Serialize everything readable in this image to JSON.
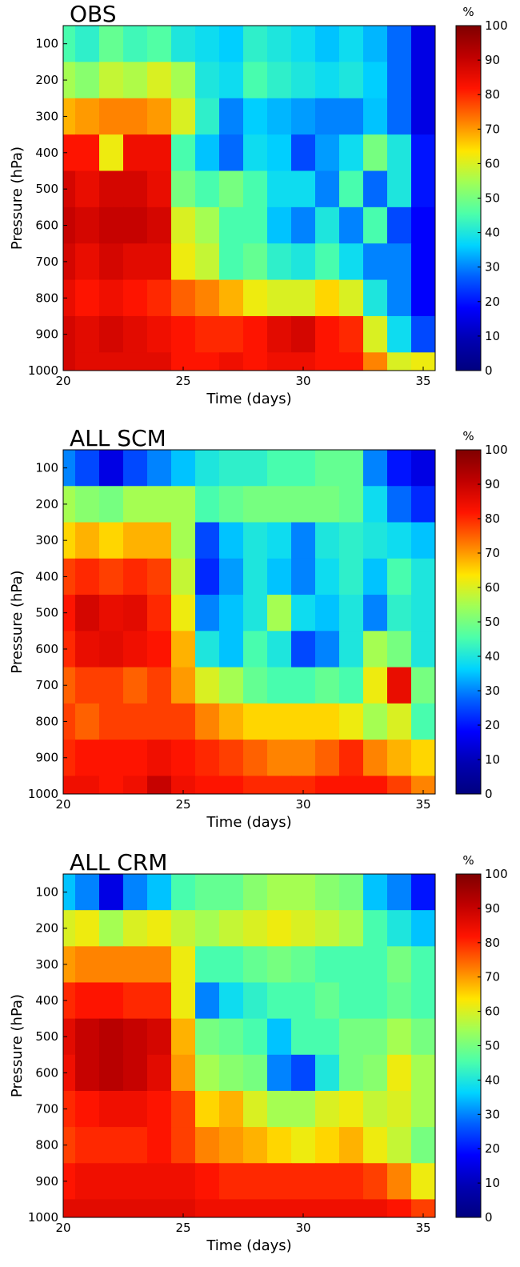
{
  "colormap": [
    "#00007f",
    "#0000b2",
    "#0000ff",
    "#0060ff",
    "#00d4ff",
    "#4cffaa",
    "#a0ff56",
    "#ffe600",
    "#ff7a00",
    "#ff1400",
    "#c00000",
    "#7f0000"
  ],
  "chart_data": [
    {
      "type": "heatmap",
      "title": "OBS",
      "xlabel": "Time (days)",
      "ylabel": "Pressure (hPa)",
      "xlim": [
        20,
        35.5
      ],
      "ylim": [
        1000,
        50
      ],
      "y_inverted": true,
      "x_ticks": [
        "20",
        "25",
        "30",
        "35"
      ],
      "y_ticks": [
        "100",
        "200",
        "300",
        "400",
        "500",
        "600",
        "700",
        "800",
        "900",
        "1000"
      ],
      "colorbar": {
        "label": "%",
        "ticks": [
          "0",
          "10",
          "20",
          "30",
          "40",
          "50",
          "60",
          "70",
          "80",
          "90",
          "100"
        ],
        "range": [
          0,
          100
        ]
      },
      "x": [
        20,
        21,
        22,
        23,
        24,
        25,
        26,
        27,
        28,
        29,
        30,
        31,
        32,
        33,
        34,
        35
      ],
      "y": [
        100,
        200,
        300,
        400,
        500,
        600,
        700,
        800,
        900,
        1000
      ],
      "z": [
        [
          45,
          42,
          48,
          44,
          46,
          40,
          38,
          36,
          42,
          40,
          38,
          35,
          38,
          34,
          28,
          15
        ],
        [
          55,
          52,
          58,
          56,
          60,
          55,
          40,
          38,
          45,
          42,
          40,
          38,
          40,
          36,
          28,
          15
        ],
        [
          68,
          70,
          72,
          72,
          70,
          60,
          42,
          30,
          36,
          34,
          32,
          30,
          30,
          35,
          28,
          15
        ],
        [
          82,
          82,
          62,
          84,
          84,
          45,
          35,
          28,
          38,
          36,
          25,
          32,
          38,
          50,
          40,
          20
        ],
        [
          88,
          85,
          88,
          88,
          85,
          50,
          45,
          50,
          45,
          38,
          38,
          30,
          45,
          28,
          40,
          20
        ],
        [
          90,
          88,
          90,
          90,
          88,
          60,
          55,
          45,
          45,
          35,
          30,
          40,
          30,
          45,
          25,
          18
        ],
        [
          88,
          85,
          88,
          86,
          86,
          62,
          58,
          45,
          48,
          42,
          40,
          45,
          38,
          30,
          30,
          18
        ],
        [
          85,
          82,
          84,
          82,
          80,
          75,
          72,
          68,
          62,
          60,
          60,
          65,
          60,
          40,
          30,
          18
        ],
        [
          88,
          86,
          88,
          86,
          84,
          82,
          80,
          80,
          82,
          86,
          88,
          82,
          80,
          60,
          38,
          25
        ],
        [
          88,
          86,
          86,
          86,
          86,
          82,
          82,
          84,
          82,
          84,
          84,
          82,
          82,
          72,
          60,
          62
        ]
      ]
    },
    {
      "type": "heatmap",
      "title": "ALL SCM",
      "xlabel": "Time (days)",
      "ylabel": "Pressure (hPa)",
      "xlim": [
        20,
        35.5
      ],
      "ylim": [
        1000,
        50
      ],
      "y_inverted": true,
      "x_ticks": [
        "20",
        "25",
        "30",
        "35"
      ],
      "y_ticks": [
        "100",
        "200",
        "300",
        "400",
        "500",
        "600",
        "700",
        "800",
        "900",
        "1000"
      ],
      "colorbar": {
        "label": "%",
        "ticks": [
          "0",
          "10",
          "20",
          "30",
          "40",
          "50",
          "60",
          "70",
          "80",
          "90",
          "100"
        ],
        "range": [
          0,
          100
        ]
      },
      "x": [
        20,
        21,
        22,
        23,
        24,
        25,
        26,
        27,
        28,
        29,
        30,
        31,
        32,
        33,
        34,
        35
      ],
      "y": [
        100,
        200,
        300,
        400,
        500,
        600,
        700,
        800,
        900,
        1000
      ],
      "z": [
        [
          30,
          25,
          15,
          25,
          30,
          35,
          40,
          42,
          42,
          45,
          45,
          48,
          48,
          30,
          20,
          15
        ],
        [
          55,
          52,
          50,
          55,
          55,
          55,
          45,
          48,
          50,
          50,
          50,
          50,
          48,
          38,
          28,
          22
        ],
        [
          65,
          68,
          65,
          68,
          68,
          55,
          25,
          35,
          40,
          38,
          30,
          40,
          42,
          40,
          38,
          35
        ],
        [
          78,
          80,
          78,
          80,
          78,
          58,
          22,
          32,
          40,
          35,
          30,
          38,
          42,
          35,
          45,
          40
        ],
        [
          82,
          88,
          85,
          86,
          80,
          62,
          30,
          35,
          40,
          55,
          38,
          35,
          40,
          30,
          42,
          40
        ],
        [
          80,
          85,
          86,
          84,
          82,
          68,
          40,
          35,
          45,
          40,
          25,
          30,
          40,
          55,
          50,
          40
        ],
        [
          75,
          78,
          78,
          75,
          78,
          70,
          60,
          55,
          48,
          45,
          45,
          48,
          45,
          62,
          85,
          50
        ],
        [
          78,
          75,
          78,
          78,
          78,
          78,
          72,
          68,
          65,
          65,
          65,
          65,
          62,
          55,
          60,
          45
        ],
        [
          80,
          82,
          82,
          82,
          84,
          82,
          80,
          78,
          75,
          72,
          72,
          75,
          80,
          72,
          68,
          65
        ],
        [
          84,
          84,
          82,
          84,
          90,
          84,
          82,
          82,
          80,
          80,
          80,
          82,
          82,
          82,
          78,
          72
        ]
      ]
    },
    {
      "type": "heatmap",
      "title": "ALL CRM",
      "xlabel": "Time (days)",
      "ylabel": "Pressure (hPa)",
      "xlim": [
        20,
        35.5
      ],
      "ylim": [
        1000,
        50
      ],
      "y_inverted": true,
      "x_ticks": [
        "20",
        "25",
        "30",
        "35"
      ],
      "y_ticks": [
        "100",
        "200",
        "300",
        "400",
        "500",
        "600",
        "700",
        "800",
        "900",
        "1000"
      ],
      "colorbar": {
        "label": "%",
        "ticks": [
          "0",
          "10",
          "20",
          "30",
          "40",
          "50",
          "60",
          "70",
          "80",
          "90",
          "100"
        ],
        "range": [
          0,
          100
        ]
      },
      "x": [
        20,
        21,
        22,
        23,
        24,
        25,
        26,
        27,
        28,
        29,
        30,
        31,
        32,
        33,
        34,
        35
      ],
      "y": [
        100,
        200,
        300,
        400,
        500,
        600,
        700,
        800,
        900,
        1000
      ],
      "z": [
        [
          35,
          30,
          15,
          30,
          35,
          45,
          48,
          48,
          52,
          55,
          55,
          52,
          50,
          35,
          30,
          20
        ],
        [
          60,
          62,
          55,
          60,
          62,
          58,
          55,
          58,
          60,
          62,
          60,
          58,
          55,
          45,
          40,
          35
        ],
        [
          70,
          72,
          72,
          72,
          72,
          62,
          45,
          45,
          48,
          50,
          48,
          45,
          45,
          45,
          50,
          45
        ],
        [
          80,
          82,
          82,
          80,
          80,
          62,
          30,
          38,
          42,
          45,
          45,
          48,
          45,
          45,
          48,
          45
        ],
        [
          86,
          90,
          92,
          90,
          88,
          68,
          50,
          48,
          45,
          35,
          45,
          45,
          50,
          50,
          55,
          50
        ],
        [
          84,
          90,
          92,
          90,
          86,
          70,
          55,
          52,
          50,
          30,
          25,
          40,
          50,
          52,
          62,
          55
        ],
        [
          80,
          82,
          84,
          84,
          82,
          78,
          65,
          68,
          60,
          55,
          55,
          60,
          62,
          58,
          60,
          55
        ],
        [
          78,
          80,
          80,
          80,
          82,
          78,
          72,
          70,
          68,
          65,
          62,
          65,
          68,
          62,
          58,
          50
        ],
        [
          82,
          84,
          84,
          84,
          84,
          84,
          82,
          80,
          80,
          80,
          80,
          80,
          80,
          78,
          72,
          62
        ],
        [
          86,
          86,
          86,
          86,
          86,
          86,
          84,
          84,
          84,
          84,
          84,
          84,
          84,
          84,
          82,
          78
        ]
      ]
    }
  ]
}
